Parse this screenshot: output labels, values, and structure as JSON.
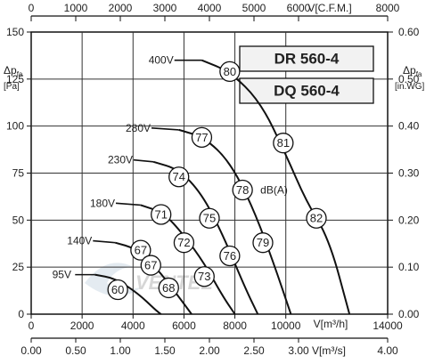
{
  "chart_data": {
    "type": "line",
    "models": [
      "DR 560-4",
      "DQ 560-4"
    ],
    "watermark": "VENTEL",
    "axes": {
      "x_bottom": {
        "label": "V[m³/h]",
        "range": [
          0,
          14000
        ],
        "ticks": [
          0,
          2000,
          4000,
          6000,
          8000,
          10000,
          14000
        ]
      },
      "x_top": {
        "label": "V[C.F.M.]",
        "range": [
          0,
          8000
        ],
        "ticks": [
          0,
          1000,
          2000,
          3000,
          4000,
          5000,
          6000,
          8000
        ]
      },
      "x_bottom2": {
        "label": "V[m³/s]",
        "range": [
          0,
          4.0
        ],
        "ticks": [
          "0.00",
          "0.50",
          "1.00",
          "1.50",
          "2.00",
          "2.50",
          "3.00",
          "4.00"
        ]
      },
      "y_left": {
        "label_main": "Δp",
        "label_sub": "fa",
        "unit": "[Pa]",
        "range": [
          0,
          150
        ],
        "ticks": [
          0,
          25,
          50,
          75,
          100,
          125,
          150
        ]
      },
      "y_right": {
        "label_main": "Δp",
        "label_sub": "fa",
        "unit": "[in.WG]",
        "range": [
          0,
          0.6
        ],
        "ticks": [
          "0.00",
          "0.10",
          "0.20",
          "0.30",
          "0.40",
          "0.50",
          "0.60"
        ]
      }
    },
    "grid": true,
    "series": [
      {
        "name": "400V",
        "points": [
          [
            6700,
            135
          ],
          [
            7800,
            129
          ],
          [
            9000,
            113
          ],
          [
            10000,
            85
          ],
          [
            10800,
            60
          ],
          [
            11700,
            40
          ],
          [
            12500,
            0
          ]
        ]
      },
      {
        "name": "280V",
        "points": [
          [
            5800,
            98
          ],
          [
            6800,
            94
          ],
          [
            7800,
            81
          ],
          [
            8700,
            57
          ],
          [
            9500,
            28
          ],
          [
            10200,
            0
          ]
        ]
      },
      {
        "name": "230V",
        "points": [
          [
            4800,
            81
          ],
          [
            5800,
            77
          ],
          [
            6700,
            64
          ],
          [
            7500,
            43
          ],
          [
            8400,
            14
          ],
          [
            8900,
            0
          ]
        ]
      },
      {
        "name": "180V",
        "points": [
          [
            4300,
            58
          ],
          [
            5200,
            54
          ],
          [
            6000,
            42
          ],
          [
            6800,
            27
          ],
          [
            7500,
            10
          ],
          [
            8000,
            0
          ]
        ]
      },
      {
        "name": "140V",
        "points": [
          [
            3300,
            38
          ],
          [
            4100,
            35
          ],
          [
            4900,
            25
          ],
          [
            5700,
            11
          ],
          [
            6300,
            0
          ]
        ]
      },
      {
        "name": "95V",
        "points": [
          [
            2500,
            21
          ],
          [
            3300,
            19
          ],
          [
            4200,
            11
          ],
          [
            4900,
            2
          ],
          [
            5100,
            0
          ]
        ]
      }
    ],
    "db_labels": [
      {
        "value": "80",
        "x": 7800,
        "y": 129
      },
      {
        "value": "81",
        "x": 9900,
        "y": 91
      },
      {
        "value": "82",
        "x": 11200,
        "y": 51
      },
      {
        "value": "77",
        "x": 6700,
        "y": 94
      },
      {
        "value": "78",
        "x": 8300,
        "y": 66
      },
      {
        "value": "79",
        "x": 9100,
        "y": 38
      },
      {
        "value": "74",
        "x": 5800,
        "y": 73
      },
      {
        "value": "75",
        "x": 7000,
        "y": 51
      },
      {
        "value": "76",
        "x": 7800,
        "y": 31
      },
      {
        "value": "71",
        "x": 5100,
        "y": 53
      },
      {
        "value": "72",
        "x": 6000,
        "y": 38
      },
      {
        "value": "73",
        "x": 6800,
        "y": 20
      },
      {
        "value": "67",
        "x": 4300,
        "y": 34
      },
      {
        "value": "67",
        "x": 4700,
        "y": 26
      },
      {
        "value": "68",
        "x": 5400,
        "y": 14
      },
      {
        "value": "60",
        "x": 3400,
        "y": 13
      }
    ],
    "db_unit_label": {
      "text": "dB(A)",
      "x": 9000,
      "y": 66
    },
    "voltage_labels": [
      {
        "text": "400V",
        "x": 5100,
        "y": 135
      },
      {
        "text": "280V",
        "x": 4200,
        "y": 99
      },
      {
        "text": "230V",
        "x": 3500,
        "y": 82
      },
      {
        "text": "180V",
        "x": 2800,
        "y": 59
      },
      {
        "text": "140V",
        "x": 1900,
        "y": 39
      },
      {
        "text": "95V",
        "x": 1200,
        "y": 21
      }
    ]
  }
}
